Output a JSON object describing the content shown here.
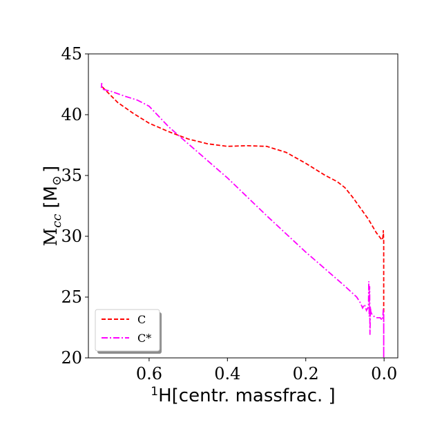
{
  "chart_data": {
    "type": "line",
    "xlim": [
      0.755,
      -0.035
    ],
    "ylim": [
      20,
      45
    ],
    "x_ticks": [
      0.6,
      0.4,
      0.2,
      0.0
    ],
    "x_tick_labels": [
      "0.6",
      "0.4",
      "0.2",
      "0.0"
    ],
    "y_ticks": [
      20,
      25,
      30,
      35,
      40,
      45
    ],
    "y_tick_labels": [
      "20",
      "25",
      "30",
      "35",
      "40",
      "45"
    ],
    "xlabel": {
      "sup": "1",
      "main": "H[centr. massfrac. ]"
    },
    "ylabel": {
      "main": "M",
      "sub": "cc",
      "unit": "[M",
      "unit_sub": "⊙",
      "unit_close": "]"
    },
    "legend_position": "lower-left",
    "grid": false,
    "series": [
      {
        "name": "C",
        "color": "#ff0000",
        "dash": "dashed",
        "x": [
          0.72,
          0.68,
          0.64,
          0.6,
          0.55,
          0.5,
          0.45,
          0.4,
          0.35,
          0.3,
          0.25,
          0.2,
          0.15,
          0.12,
          0.1,
          0.08,
          0.06,
          0.04,
          0.02,
          0.008,
          0.004,
          0.002,
          0.002,
          0.001,
          0.001
        ],
        "y": [
          42.3,
          41.0,
          40.1,
          39.3,
          38.6,
          38.0,
          37.6,
          37.4,
          37.45,
          37.4,
          36.9,
          36.0,
          35.0,
          34.5,
          34.0,
          33.2,
          32.3,
          31.4,
          30.3,
          29.8,
          29.7,
          30.3,
          30.5,
          29.6,
          23.5
        ]
      },
      {
        "name": "C*",
        "color": "#ff00ff",
        "dash": "dashdot",
        "x": [
          0.722,
          0.721,
          0.72,
          0.7,
          0.66,
          0.63,
          0.6,
          0.55,
          0.5,
          0.4,
          0.3,
          0.2,
          0.15,
          0.1,
          0.07,
          0.06,
          0.055,
          0.05,
          0.045,
          0.04,
          0.039,
          0.038,
          0.037,
          0.036,
          0.035,
          0.034,
          0.03,
          0.02,
          0.01,
          0.005,
          0.003,
          0.002,
          0.001,
          0.001,
          0.001
        ],
        "y": [
          42.2,
          42.6,
          42.1,
          41.95,
          41.5,
          41.2,
          40.7,
          39.0,
          37.6,
          34.8,
          31.7,
          28.7,
          27.3,
          25.9,
          25.0,
          24.5,
          24.1,
          24.4,
          23.9,
          24.2,
          26.3,
          23.4,
          25.9,
          21.9,
          24.2,
          23.8,
          23.5,
          23.3,
          23.3,
          23.1,
          23.5,
          24.0,
          23.2,
          20.0,
          23.6
        ]
      }
    ]
  }
}
